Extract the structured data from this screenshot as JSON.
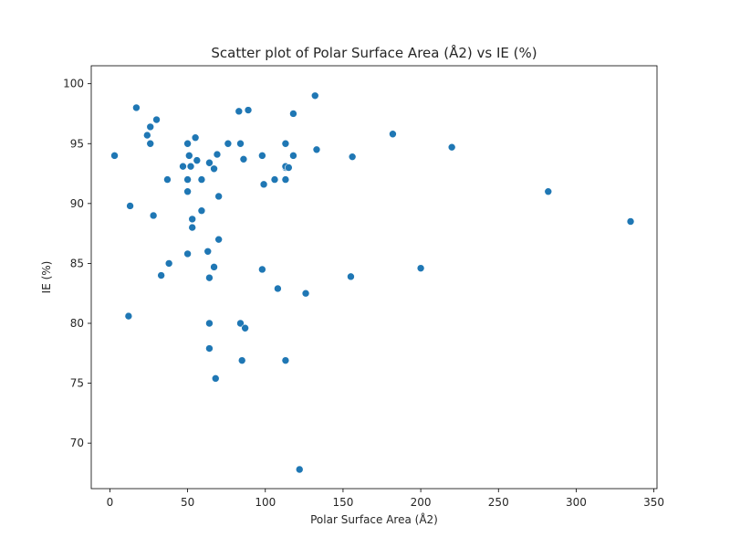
{
  "chart_data": {
    "type": "scatter",
    "title": "Scatter plot of Polar Surface Area (Å2) vs IE (%)",
    "xlabel": "Polar Surface Area (Å2)",
    "ylabel": "IE (%)",
    "xlim": [
      -12,
      352
    ],
    "ylim": [
      66.2,
      101.5
    ],
    "xticks": [
      0,
      50,
      100,
      150,
      200,
      250,
      300,
      350
    ],
    "yticks": [
      70,
      75,
      80,
      85,
      90,
      95,
      100
    ],
    "grid": false,
    "point_color": "#1f77b4",
    "points": [
      [
        3,
        94.0
      ],
      [
        12,
        80.6
      ],
      [
        13,
        89.8
      ],
      [
        17,
        98.0
      ],
      [
        24,
        95.7
      ],
      [
        26,
        96.4
      ],
      [
        26,
        95.0
      ],
      [
        28,
        89.0
      ],
      [
        30,
        97.0
      ],
      [
        33,
        84.0
      ],
      [
        37,
        92.0
      ],
      [
        38,
        85.0
      ],
      [
        47,
        93.1
      ],
      [
        50,
        95.0
      ],
      [
        50,
        92.0
      ],
      [
        50,
        91.0
      ],
      [
        50,
        85.8
      ],
      [
        51,
        94.0
      ],
      [
        52,
        93.1
      ],
      [
        53,
        88.7
      ],
      [
        53,
        88.0
      ],
      [
        55,
        95.5
      ],
      [
        56,
        93.6
      ],
      [
        59,
        92.0
      ],
      [
        59,
        89.4
      ],
      [
        63,
        86.0
      ],
      [
        64,
        83.8
      ],
      [
        64,
        80.0
      ],
      [
        64,
        77.9
      ],
      [
        64,
        93.4
      ],
      [
        67,
        92.9
      ],
      [
        67,
        84.7
      ],
      [
        68,
        75.4
      ],
      [
        69,
        94.1
      ],
      [
        70,
        90.6
      ],
      [
        70,
        87.0
      ],
      [
        76,
        95.0
      ],
      [
        83,
        97.7
      ],
      [
        84,
        95.0
      ],
      [
        84,
        80.0
      ],
      [
        85,
        76.9
      ],
      [
        86,
        93.7
      ],
      [
        87,
        79.6
      ],
      [
        89,
        97.8
      ],
      [
        98,
        94.0
      ],
      [
        98,
        84.5
      ],
      [
        99,
        91.6
      ],
      [
        106,
        92.0
      ],
      [
        108,
        82.9
      ],
      [
        113,
        95.0
      ],
      [
        113,
        93.0
      ],
      [
        113,
        93.1
      ],
      [
        113,
        92.0
      ],
      [
        113,
        76.9
      ],
      [
        115,
        93.0
      ],
      [
        118,
        94.0
      ],
      [
        118,
        97.5
      ],
      [
        122,
        67.8
      ],
      [
        126,
        82.5
      ],
      [
        132,
        99.0
      ],
      [
        133,
        94.5
      ],
      [
        155,
        83.9
      ],
      [
        156,
        93.9
      ],
      [
        182,
        95.8
      ],
      [
        200,
        84.6
      ],
      [
        220,
        94.7
      ],
      [
        282,
        91.0
      ],
      [
        335,
        88.5
      ]
    ]
  }
}
